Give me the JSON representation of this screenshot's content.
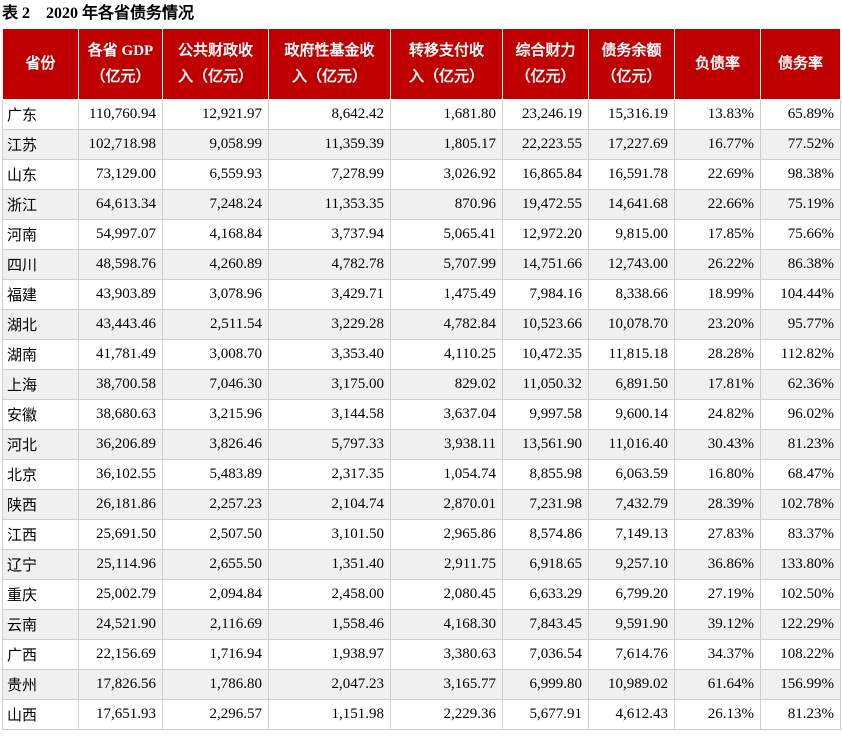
{
  "title": "表 2    2020 年各省债务情况",
  "table": {
    "header": [
      [
        "省份"
      ],
      [
        "各省 GDP",
        "（亿元）"
      ],
      [
        "公共财政收",
        "入（亿元）"
      ],
      [
        "政府性基金收",
        "入（亿元）"
      ],
      [
        "转移支付收",
        "入（亿元）"
      ],
      [
        "综合财力",
        "（亿元）"
      ],
      [
        "债务余额",
        "（亿元）"
      ],
      [
        "负债率"
      ],
      [
        "债务率"
      ]
    ],
    "rows": [
      [
        "广东",
        "110,760.94",
        "12,921.97",
        "8,642.42",
        "1,681.80",
        "23,246.19",
        "15,316.19",
        "13.83%",
        "65.89%"
      ],
      [
        "江苏",
        "102,718.98",
        "9,058.99",
        "11,359.39",
        "1,805.17",
        "22,223.55",
        "17,227.69",
        "16.77%",
        "77.52%"
      ],
      [
        "山东",
        "73,129.00",
        "6,559.93",
        "7,278.99",
        "3,026.92",
        "16,865.84",
        "16,591.78",
        "22.69%",
        "98.38%"
      ],
      [
        "浙江",
        "64,613.34",
        "7,248.24",
        "11,353.35",
        "870.96",
        "19,472.55",
        "14,641.68",
        "22.66%",
        "75.19%"
      ],
      [
        "河南",
        "54,997.07",
        "4,168.84",
        "3,737.94",
        "5,065.41",
        "12,972.20",
        "9,815.00",
        "17.85%",
        "75.66%"
      ],
      [
        "四川",
        "48,598.76",
        "4,260.89",
        "4,782.78",
        "5,707.99",
        "14,751.66",
        "12,743.00",
        "26.22%",
        "86.38%"
      ],
      [
        "福建",
        "43,903.89",
        "3,078.96",
        "3,429.71",
        "1,475.49",
        "7,984.16",
        "8,338.66",
        "18.99%",
        "104.44%"
      ],
      [
        "湖北",
        "43,443.46",
        "2,511.54",
        "3,229.28",
        "4,782.84",
        "10,523.66",
        "10,078.70",
        "23.20%",
        "95.77%"
      ],
      [
        "湖南",
        "41,781.49",
        "3,008.70",
        "3,353.40",
        "4,110.25",
        "10,472.35",
        "11,815.18",
        "28.28%",
        "112.82%"
      ],
      [
        "上海",
        "38,700.58",
        "7,046.30",
        "3,175.00",
        "829.02",
        "11,050.32",
        "6,891.50",
        "17.81%",
        "62.36%"
      ],
      [
        "安徽",
        "38,680.63",
        "3,215.96",
        "3,144.58",
        "3,637.04",
        "9,997.58",
        "9,600.14",
        "24.82%",
        "96.02%"
      ],
      [
        "河北",
        "36,206.89",
        "3,826.46",
        "5,797.33",
        "3,938.11",
        "13,561.90",
        "11,016.40",
        "30.43%",
        "81.23%"
      ],
      [
        "北京",
        "36,102.55",
        "5,483.89",
        "2,317.35",
        "1,054.74",
        "8,855.98",
        "6,063.59",
        "16.80%",
        "68.47%"
      ],
      [
        "陕西",
        "26,181.86",
        "2,257.23",
        "2,104.74",
        "2,870.01",
        "7,231.98",
        "7,432.79",
        "28.39%",
        "102.78%"
      ],
      [
        "江西",
        "25,691.50",
        "2,507.50",
        "3,101.50",
        "2,965.86",
        "8,574.86",
        "7,149.13",
        "27.83%",
        "83.37%"
      ],
      [
        "辽宁",
        "25,114.96",
        "2,655.50",
        "1,351.40",
        "2,911.75",
        "6,918.65",
        "9,257.10",
        "36.86%",
        "133.80%"
      ],
      [
        "重庆",
        "25,002.79",
        "2,094.84",
        "2,458.00",
        "2,080.45",
        "6,633.29",
        "6,799.20",
        "27.19%",
        "102.50%"
      ],
      [
        "云南",
        "24,521.90",
        "2,116.69",
        "1,558.46",
        "4,168.30",
        "7,843.45",
        "9,591.90",
        "39.12%",
        "122.29%"
      ],
      [
        "广西",
        "22,156.69",
        "1,716.94",
        "1,938.97",
        "3,380.63",
        "7,036.54",
        "7,614.76",
        "34.37%",
        "108.22%"
      ],
      [
        "贵州",
        "17,826.56",
        "1,786.80",
        "2,047.23",
        "3,165.77",
        "6,999.80",
        "10,989.02",
        "61.64%",
        "156.99%"
      ],
      [
        "山西",
        "17,651.93",
        "2,296.57",
        "1,151.98",
        "2,229.36",
        "5,677.91",
        "4,612.43",
        "26.13%",
        "81.23%"
      ]
    ]
  }
}
